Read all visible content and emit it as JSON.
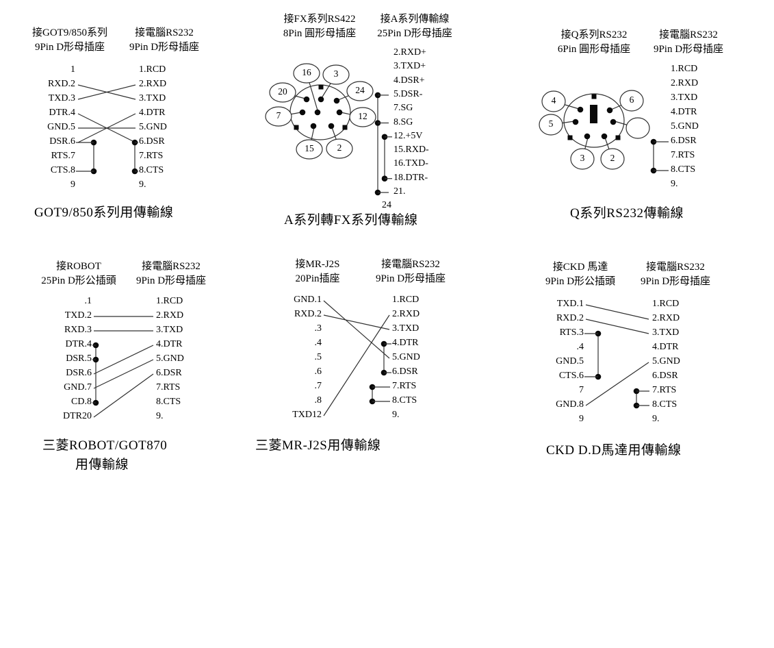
{
  "page": {
    "background": "#ffffff",
    "ink": "#303030",
    "accent": "#0a0a0a"
  },
  "panels": [
    {
      "id": "got9-850",
      "left_header": [
        "接GOT9/850系列",
        "9Pin D形母插座"
      ],
      "right_header": [
        "接電腦RS232",
        "9Pin D形母插座"
      ],
      "left_pins": [
        "1",
        "RXD.2",
        "TXD.3",
        "DTR.4",
        "GND.5",
        "DSR.6",
        "RTS.7",
        "CTS.8",
        "9"
      ],
      "right_pins": [
        "1.RCD",
        "2.RXD",
        "3.TXD",
        "4.DTR",
        "5.GND",
        "6.DSR",
        "7.RTS",
        "8.CTS",
        "9."
      ],
      "connections": [
        {
          "from": 1,
          "to": 2
        },
        {
          "from": 2,
          "to": 1
        },
        {
          "from": 3,
          "to": 5
        },
        {
          "from": 4,
          "to": 4
        },
        {
          "from": 5,
          "to": 3
        }
      ],
      "jumpers": [
        {
          "side": "left",
          "pins": [
            5,
            7
          ]
        },
        {
          "side": "right",
          "pins": [
            5,
            7
          ]
        }
      ],
      "titles": [
        "GOT9/850系列用傳輸線"
      ]
    },
    {
      "id": "a-to-fx",
      "left_header": [
        "接FX系列RS422",
        "8Pin 圓形母插座"
      ],
      "right_header": [
        "接A系列傳輸線",
        "25Pin D形母插座"
      ],
      "left_pins": [],
      "right_pins": [
        "2.RXD+",
        "3.TXD+",
        "4.DSR+",
        "5.DSR-",
        "7.SG",
        "8.SG",
        "12.+5V",
        "15.RXD-",
        "16.TXD-",
        "18.DTR-",
        "21.",
        "24"
      ],
      "connector": {
        "type": "8pin-circular-female",
        "bubbles": [
          "16",
          "3",
          "20",
          "24",
          "7",
          "12",
          "15",
          "2"
        ]
      },
      "connections": [],
      "jumpers": [
        {
          "side": "right",
          "pins": [
            3,
            5,
            10
          ]
        },
        {
          "side": "right",
          "pins": [
            6,
            9
          ]
        }
      ],
      "titles": [
        "A系列轉FX系列傳輸線"
      ]
    },
    {
      "id": "q-rs232",
      "left_header": [
        "接Q系列RS232",
        "6Pin 圓形母插座"
      ],
      "right_header": [
        "接電腦RS232",
        "9Pin D形母插座"
      ],
      "left_pins": [],
      "right_pins": [
        "1.RCD",
        "2.RXD",
        "3.TXD",
        "4.DTR",
        "5.GND",
        "6.DSR",
        "7.RTS",
        "8.CTS",
        "9."
      ],
      "connector": {
        "type": "6pin-circular-female",
        "bubbles": [
          "4",
          "6",
          "5",
          "",
          "3",
          "2"
        ]
      },
      "connections": [],
      "jumpers": [
        {
          "side": "right",
          "pins": [
            5,
            7
          ]
        }
      ],
      "titles": [
        "Q系列RS232傳輸線"
      ]
    },
    {
      "id": "robot-got870",
      "left_header": [
        "接ROBOT",
        "25Pin D形公插頭"
      ],
      "right_header": [
        "接電腦RS232",
        "9Pin D形母插座"
      ],
      "left_pins": [
        ".1",
        "TXD.2",
        "RXD.3",
        "DTR.4",
        "DSR.5",
        "DSR.6",
        "GND.7",
        "CD.8",
        "DTR20"
      ],
      "right_pins": [
        "1.RCD",
        "2.RXD",
        "3.TXD",
        "4.DTR",
        "5.GND",
        "6.DSR",
        "7.RTS",
        "8.CTS",
        "9."
      ],
      "connections": [
        {
          "from": 1,
          "to": 1
        },
        {
          "from": 2,
          "to": 2
        },
        {
          "from": 5,
          "to": 3
        },
        {
          "from": 6,
          "to": 4
        },
        {
          "from": 8,
          "to": 5
        }
      ],
      "jumpers": [
        {
          "side": "left",
          "pins": [
            3,
            4,
            7
          ]
        }
      ],
      "titles": [
        "三菱ROBOT/GOT870",
        "用傳輸線"
      ]
    },
    {
      "id": "mr-j2s",
      "left_header": [
        "接MR-J2S",
        "20Pin插座"
      ],
      "right_header": [
        "接電腦RS232",
        "9Pin D形母插座"
      ],
      "left_pins": [
        "GND.1",
        "RXD.2",
        ".3",
        ".4",
        ".5",
        ".6",
        ".7",
        ".8",
        "TXD12"
      ],
      "right_pins": [
        "1.RCD",
        "2.RXD",
        "3.TXD",
        "4.DTR",
        "5.GND",
        "6.DSR",
        "7.RTS",
        "8.CTS",
        "9."
      ],
      "connections": [
        {
          "from": 0,
          "to": 4
        },
        {
          "from": 1,
          "to": 2
        },
        {
          "from": 8,
          "to": 1
        }
      ],
      "jumpers": [
        {
          "side": "right",
          "pins": [
            3,
            5
          ]
        },
        {
          "side": "right",
          "pins": [
            6,
            7
          ]
        }
      ],
      "titles": [
        "三菱MR-J2S用傳輸線"
      ]
    },
    {
      "id": "ckd-dd-motor",
      "left_header": [
        "接CKD 馬達",
        "9Pin D形公插頭"
      ],
      "right_header": [
        "接電腦RS232",
        "9Pin D形母插座"
      ],
      "left_pins": [
        "TXD.1",
        "RXD.2",
        "RTS.3",
        ".4",
        "GND.5",
        "CTS.6",
        "7",
        "GND.8",
        "9"
      ],
      "right_pins": [
        "1.RCD",
        "2.RXD",
        "3.TXD",
        "4.DTR",
        "5.GND",
        "6.DSR",
        "7.RTS",
        "8.CTS",
        "9."
      ],
      "connections": [
        {
          "from": 0,
          "to": 1
        },
        {
          "from": 1,
          "to": 2
        },
        {
          "from": 7,
          "to": 4
        }
      ],
      "jumpers": [
        {
          "side": "left",
          "pins": [
            2,
            5
          ]
        },
        {
          "side": "right",
          "pins": [
            6,
            7
          ]
        }
      ],
      "titles": [
        "CKD D.D馬達用傳輸線"
      ]
    }
  ]
}
